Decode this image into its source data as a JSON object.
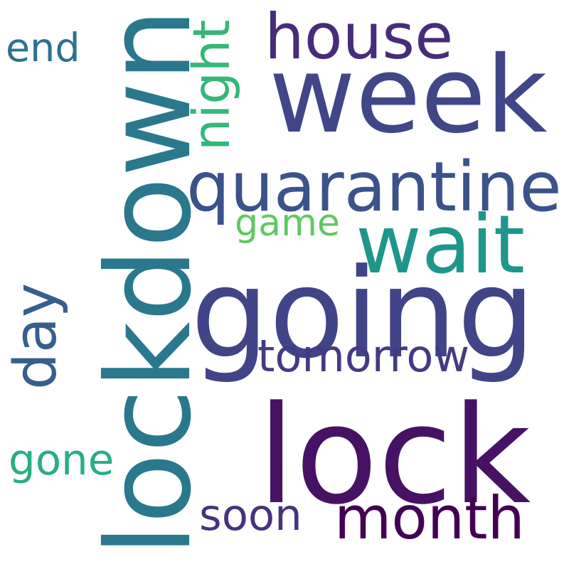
{
  "words": [
    {
      "text": "lockdown",
      "color": "#2a788e",
      "vertical": true
    },
    {
      "text": "going",
      "color": "#414487",
      "vertical": false
    },
    {
      "text": "week",
      "color": "#404688",
      "vertical": false
    },
    {
      "text": "lock",
      "color": "#471164",
      "vertical": false
    },
    {
      "text": "quarantine",
      "color": "#3b528b",
      "vertical": false
    },
    {
      "text": "month",
      "color": "#440154",
      "vertical": false
    },
    {
      "text": "house",
      "color": "#472c7a",
      "vertical": false
    },
    {
      "text": "wait",
      "color": "#1f968b",
      "vertical": false
    },
    {
      "text": "day",
      "color": "#355f8d",
      "vertical": true
    },
    {
      "text": "tomorrow",
      "color": "#443a83",
      "vertical": false
    },
    {
      "text": "soon",
      "color": "#46337e",
      "vertical": false
    },
    {
      "text": "night",
      "color": "#35b779",
      "vertical": true
    },
    {
      "text": "game",
      "color": "#5ec962",
      "vertical": false
    },
    {
      "text": "gone",
      "color": "#29af7f",
      "vertical": false
    },
    {
      "text": "end",
      "color": "#2c728e",
      "vertical": false
    }
  ]
}
